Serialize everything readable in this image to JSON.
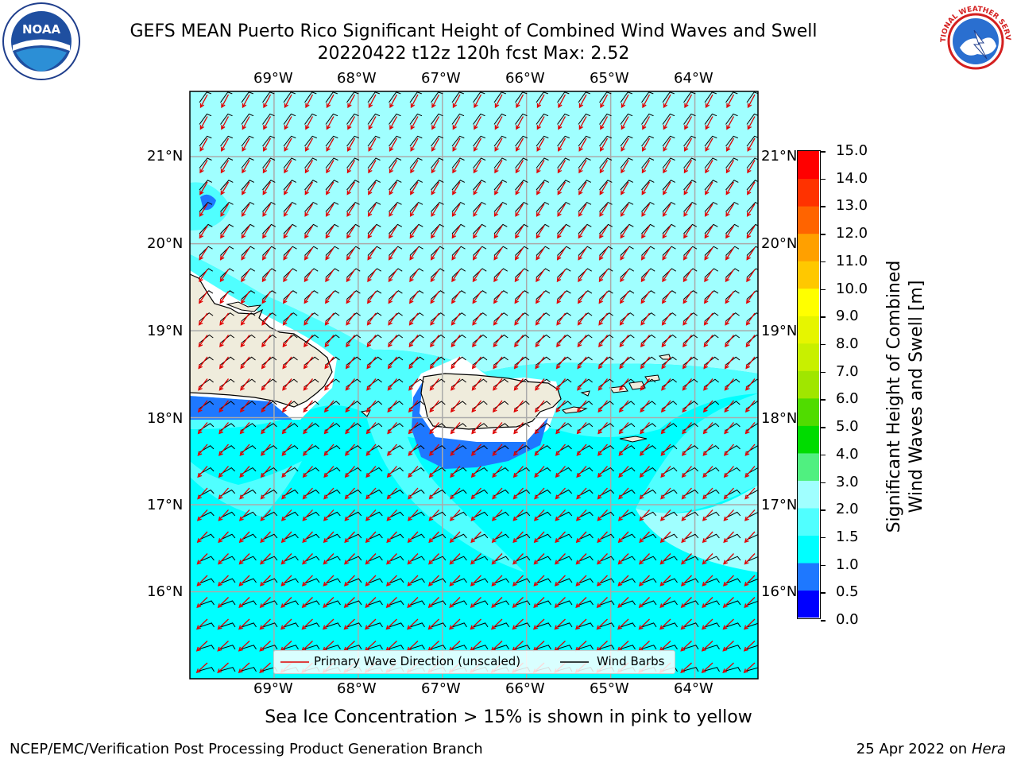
{
  "title_line1": "GEFS MEAN Puerto Rico Significant Height of Combined Wind Waves and Swell",
  "title_line2": "20220422 t12z 120h fcst   Max: 2.52",
  "logos": {
    "left": "noaa-logo",
    "right": "nws-logo",
    "noaa_text": "NOAA",
    "nws_text": "NATIONAL WEATHER SERVICE"
  },
  "map": {
    "lon_labels": [
      "69°W",
      "68°W",
      "67°W",
      "66°W",
      "65°W",
      "64°W"
    ],
    "lon_values": [
      -69,
      -68,
      -67,
      -66,
      -65,
      -64
    ],
    "lat_labels": [
      "21°N",
      "20°N",
      "19°N",
      "18°N",
      "17°N",
      "16°N"
    ],
    "lat_values": [
      21,
      20,
      19,
      18,
      17,
      16
    ],
    "extent": {
      "lon_min": -70,
      "lon_max": -63.25,
      "lat_min": 15,
      "lat_max": 21.75
    },
    "legend": {
      "wave": "Primary Wave Direction (unscaled)",
      "barbs": "Wind Barbs"
    }
  },
  "colorbar": {
    "label": "Significant Height of Combined Wind Waves and Swell [m]",
    "label_line1": "Significant Height of Combined",
    "label_line2": "Wind Waves and Swell [m]",
    "ticks": [
      "0.0",
      "0.5",
      "1.0",
      "1.5",
      "2.0",
      "3.0",
      "4.0",
      "5.0",
      "6.0",
      "7.0",
      "8.0",
      "9.0",
      "10.0",
      "11.0",
      "12.0",
      "13.0",
      "14.0",
      "15.0"
    ],
    "colors": [
      "#0000ff",
      "#1e78ff",
      "#00ffff",
      "#50ffff",
      "#a0ffff",
      "#50f080",
      "#00dc00",
      "#50dc00",
      "#a0e600",
      "#c8f000",
      "#e6f500",
      "#ffff00",
      "#ffc800",
      "#ffa000",
      "#ff6400",
      "#ff3200",
      "#ff0000"
    ]
  },
  "caption": "Sea Ice Concentration > 15% is shown in pink to yellow",
  "footer_left": "NCEP/EMC/Verification Post Processing Product Generation Branch",
  "footer_right_prefix": "25 Apr 2022 on ",
  "footer_right_italic": "Hera"
}
